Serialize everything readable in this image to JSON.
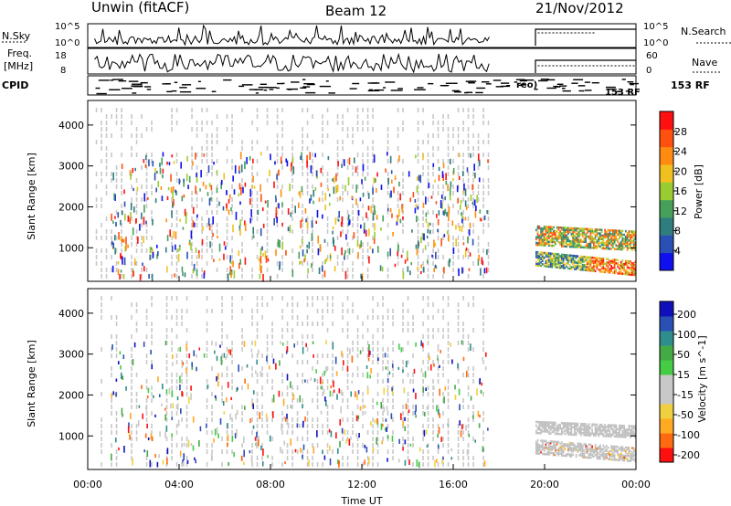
{
  "header": {
    "station": "Unwin (fitACF)",
    "beam": "Beam 12",
    "date": "21/Nov/2012"
  },
  "summary_panels": {
    "nsky_label": "N.Sky",
    "nsky_ticks": [
      "10^5",
      "10^0"
    ],
    "nsearch_label": "N.Search",
    "nsearch_ticks": [
      "10^5",
      "10^0"
    ],
    "freq_label": "Freq.",
    "freq_unit": "[MHz]",
    "freq_ticks": [
      "18",
      "8"
    ],
    "nave_label": "Nave",
    "nave_ticks": [
      "60",
      "0"
    ],
    "cpid_label": "CPID",
    "cpid_text": "153 RF",
    "cpid_text_small": "153 RF",
    "cpid_fragment": "reo)"
  },
  "colors": {
    "power": [
      "#1010ee",
      "#2a4fb5",
      "#2f7d7d",
      "#46a05a",
      "#99cc33",
      "#f0c020",
      "#ff8c10",
      "#ff5010",
      "#ff1010"
    ],
    "velocity": [
      "#ff1010",
      "#ff6a10",
      "#ffaa20",
      "#f0d040",
      "#c8c8c8",
      "#c8c8c8",
      "#44cc44",
      "#44aa44",
      "#2f8d8d",
      "#2a4fb5",
      "#1010bb"
    ],
    "gray_scatter": "#c8c8c8",
    "ground_scatter": "#c0c0c0"
  },
  "chart_data": [
    {
      "type": "heatmap",
      "name": "power",
      "title": "",
      "xlabel": "",
      "ylabel": "Slant Range [km]",
      "x_range": [
        "00:00",
        "24:00"
      ],
      "ylim": [
        180,
        4600
      ],
      "y_ticks": [
        "4000",
        "3000",
        "2000",
        "1000"
      ],
      "y_tick_values": [
        4000,
        3000,
        2000,
        1000
      ],
      "colorbar": {
        "label": "Power [dB]",
        "ticks": [
          "28",
          "24",
          "20",
          "16",
          "12",
          "8",
          "4"
        ],
        "tick_values": [
          28,
          24,
          20,
          16,
          12,
          8,
          4
        ],
        "range": [
          0,
          32
        ]
      },
      "regions": [
        {
          "x_start": "19:30",
          "x_end": "24:00",
          "range_km": [
            500,
            1600
          ],
          "power_db_range": [
            4,
            30
          ]
        },
        {
          "x_start": "01:00",
          "x_end": "17:30",
          "range_km": [
            300,
            3400
          ],
          "power_db_range": [
            4,
            30
          ],
          "pattern": "scattered vertical streaks"
        }
      ]
    },
    {
      "type": "heatmap",
      "name": "velocity",
      "title": "",
      "xlabel": "Time UT",
      "ylabel": "Slant Range [km]",
      "x_ticks": [
        "00:00",
        "04:00",
        "08:00",
        "12:00",
        "16:00",
        "20:00",
        "00:00"
      ],
      "x_tick_values": [
        0,
        4,
        8,
        12,
        16,
        20,
        24
      ],
      "ylim": [
        180,
        4600
      ],
      "y_ticks": [
        "4000",
        "3000",
        "2000",
        "1000"
      ],
      "y_tick_values": [
        4000,
        3000,
        2000,
        1000
      ],
      "colorbar": {
        "label": "Velocity [m s^-1]",
        "ticks": [
          "200",
          "100",
          "50",
          "15",
          "-15",
          "-50",
          "-100",
          "-200"
        ],
        "tick_values": [
          200,
          100,
          50,
          15,
          -15,
          -50,
          -100,
          -200
        ]
      },
      "regions": [
        {
          "x_start": "19:30",
          "x_end": "24:00",
          "range_km": [
            500,
            1400
          ],
          "velocity_range": [
            -15,
            15
          ],
          "note": "mostly ground scatter (gray)"
        }
      ]
    }
  ]
}
